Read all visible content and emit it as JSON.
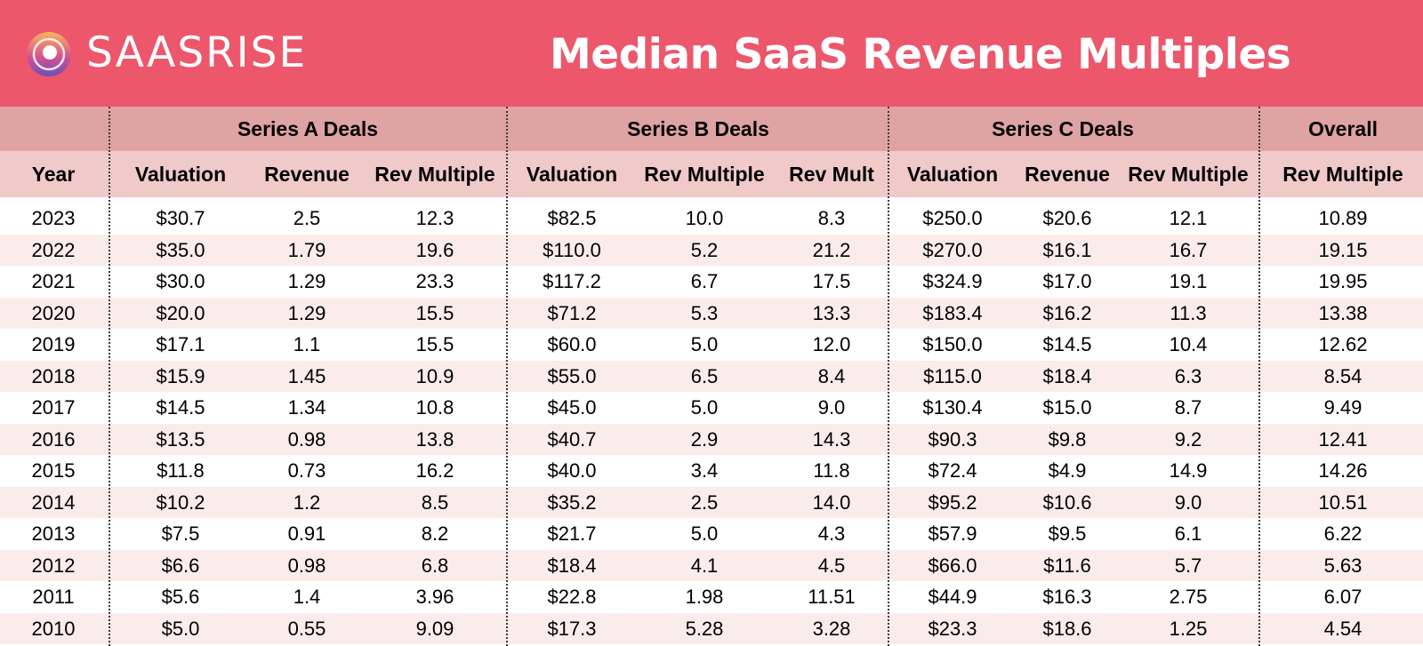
{
  "brand": {
    "name": "SAASRISE"
  },
  "title": "Median SaaS Revenue Multiples",
  "colors": {
    "header_bg": "#ec576c",
    "group_band": "#e0a3a3",
    "column_band": "#f0c9c9",
    "alt_row": "#fbecec"
  },
  "chart_data": {
    "type": "table",
    "title": "Median SaaS Revenue Multiples",
    "group_headers": [
      "Series A Deals",
      "Series B Deals",
      "Series C Deals",
      "Overall"
    ],
    "columns": [
      "Year",
      "Valuation",
      "Revenue",
      "Rev Multiple",
      "Valuation",
      "Rev Multiple",
      "Rev Mult",
      "Valuation",
      "Revenue",
      "Rev Multiple",
      "Rev Multiple"
    ],
    "rows": [
      [
        "2023",
        "$30.7",
        "2.5",
        "12.3",
        "$82.5",
        "10.0",
        "8.3",
        "$250.0",
        "$20.6",
        "12.1",
        "10.89"
      ],
      [
        "2022",
        "$35.0",
        "1.79",
        "19.6",
        "$110.0",
        "5.2",
        "21.2",
        "$270.0",
        "$16.1",
        "16.7",
        "19.15"
      ],
      [
        "2021",
        "$30.0",
        "1.29",
        "23.3",
        "$117.2",
        "6.7",
        "17.5",
        "$324.9",
        "$17.0",
        "19.1",
        "19.95"
      ],
      [
        "2020",
        "$20.0",
        "1.29",
        "15.5",
        "$71.2",
        "5.3",
        "13.3",
        "$183.4",
        "$16.2",
        "11.3",
        "13.38"
      ],
      [
        "2019",
        "$17.1",
        "1.1",
        "15.5",
        "$60.0",
        "5.0",
        "12.0",
        "$150.0",
        "$14.5",
        "10.4",
        "12.62"
      ],
      [
        "2018",
        "$15.9",
        "1.45",
        "10.9",
        "$55.0",
        "6.5",
        "8.4",
        "$115.0",
        "$18.4",
        "6.3",
        "8.54"
      ],
      [
        "2017",
        "$14.5",
        "1.34",
        "10.8",
        "$45.0",
        "5.0",
        "9.0",
        "$130.4",
        "$15.0",
        "8.7",
        "9.49"
      ],
      [
        "2016",
        "$13.5",
        "0.98",
        "13.8",
        "$40.7",
        "2.9",
        "14.3",
        "$90.3",
        "$9.8",
        "9.2",
        "12.41"
      ],
      [
        "2015",
        "$11.8",
        "0.73",
        "16.2",
        "$40.0",
        "3.4",
        "11.8",
        "$72.4",
        "$4.9",
        "14.9",
        "14.26"
      ],
      [
        "2014",
        "$10.2",
        "1.2",
        "8.5",
        "$35.2",
        "2.5",
        "14.0",
        "$95.2",
        "$10.6",
        "9.0",
        "10.51"
      ],
      [
        "2013",
        "$7.5",
        "0.91",
        "8.2",
        "$21.7",
        "5.0",
        "4.3",
        "$57.9",
        "$9.5",
        "6.1",
        "6.22"
      ],
      [
        "2012",
        "$6.6",
        "0.98",
        "6.8",
        "$18.4",
        "4.1",
        "4.5",
        "$66.0",
        "$11.6",
        "5.7",
        "5.63"
      ],
      [
        "2011",
        "$5.6",
        "1.4",
        "3.96",
        "$22.8",
        "1.98",
        "11.51",
        "$44.9",
        "$16.3",
        "2.75",
        "6.07"
      ],
      [
        "2010",
        "$5.0",
        "0.55",
        "9.09",
        "$17.3",
        "5.28",
        "3.28",
        "$23.3",
        "$18.6",
        "1.25",
        "4.54"
      ]
    ]
  }
}
